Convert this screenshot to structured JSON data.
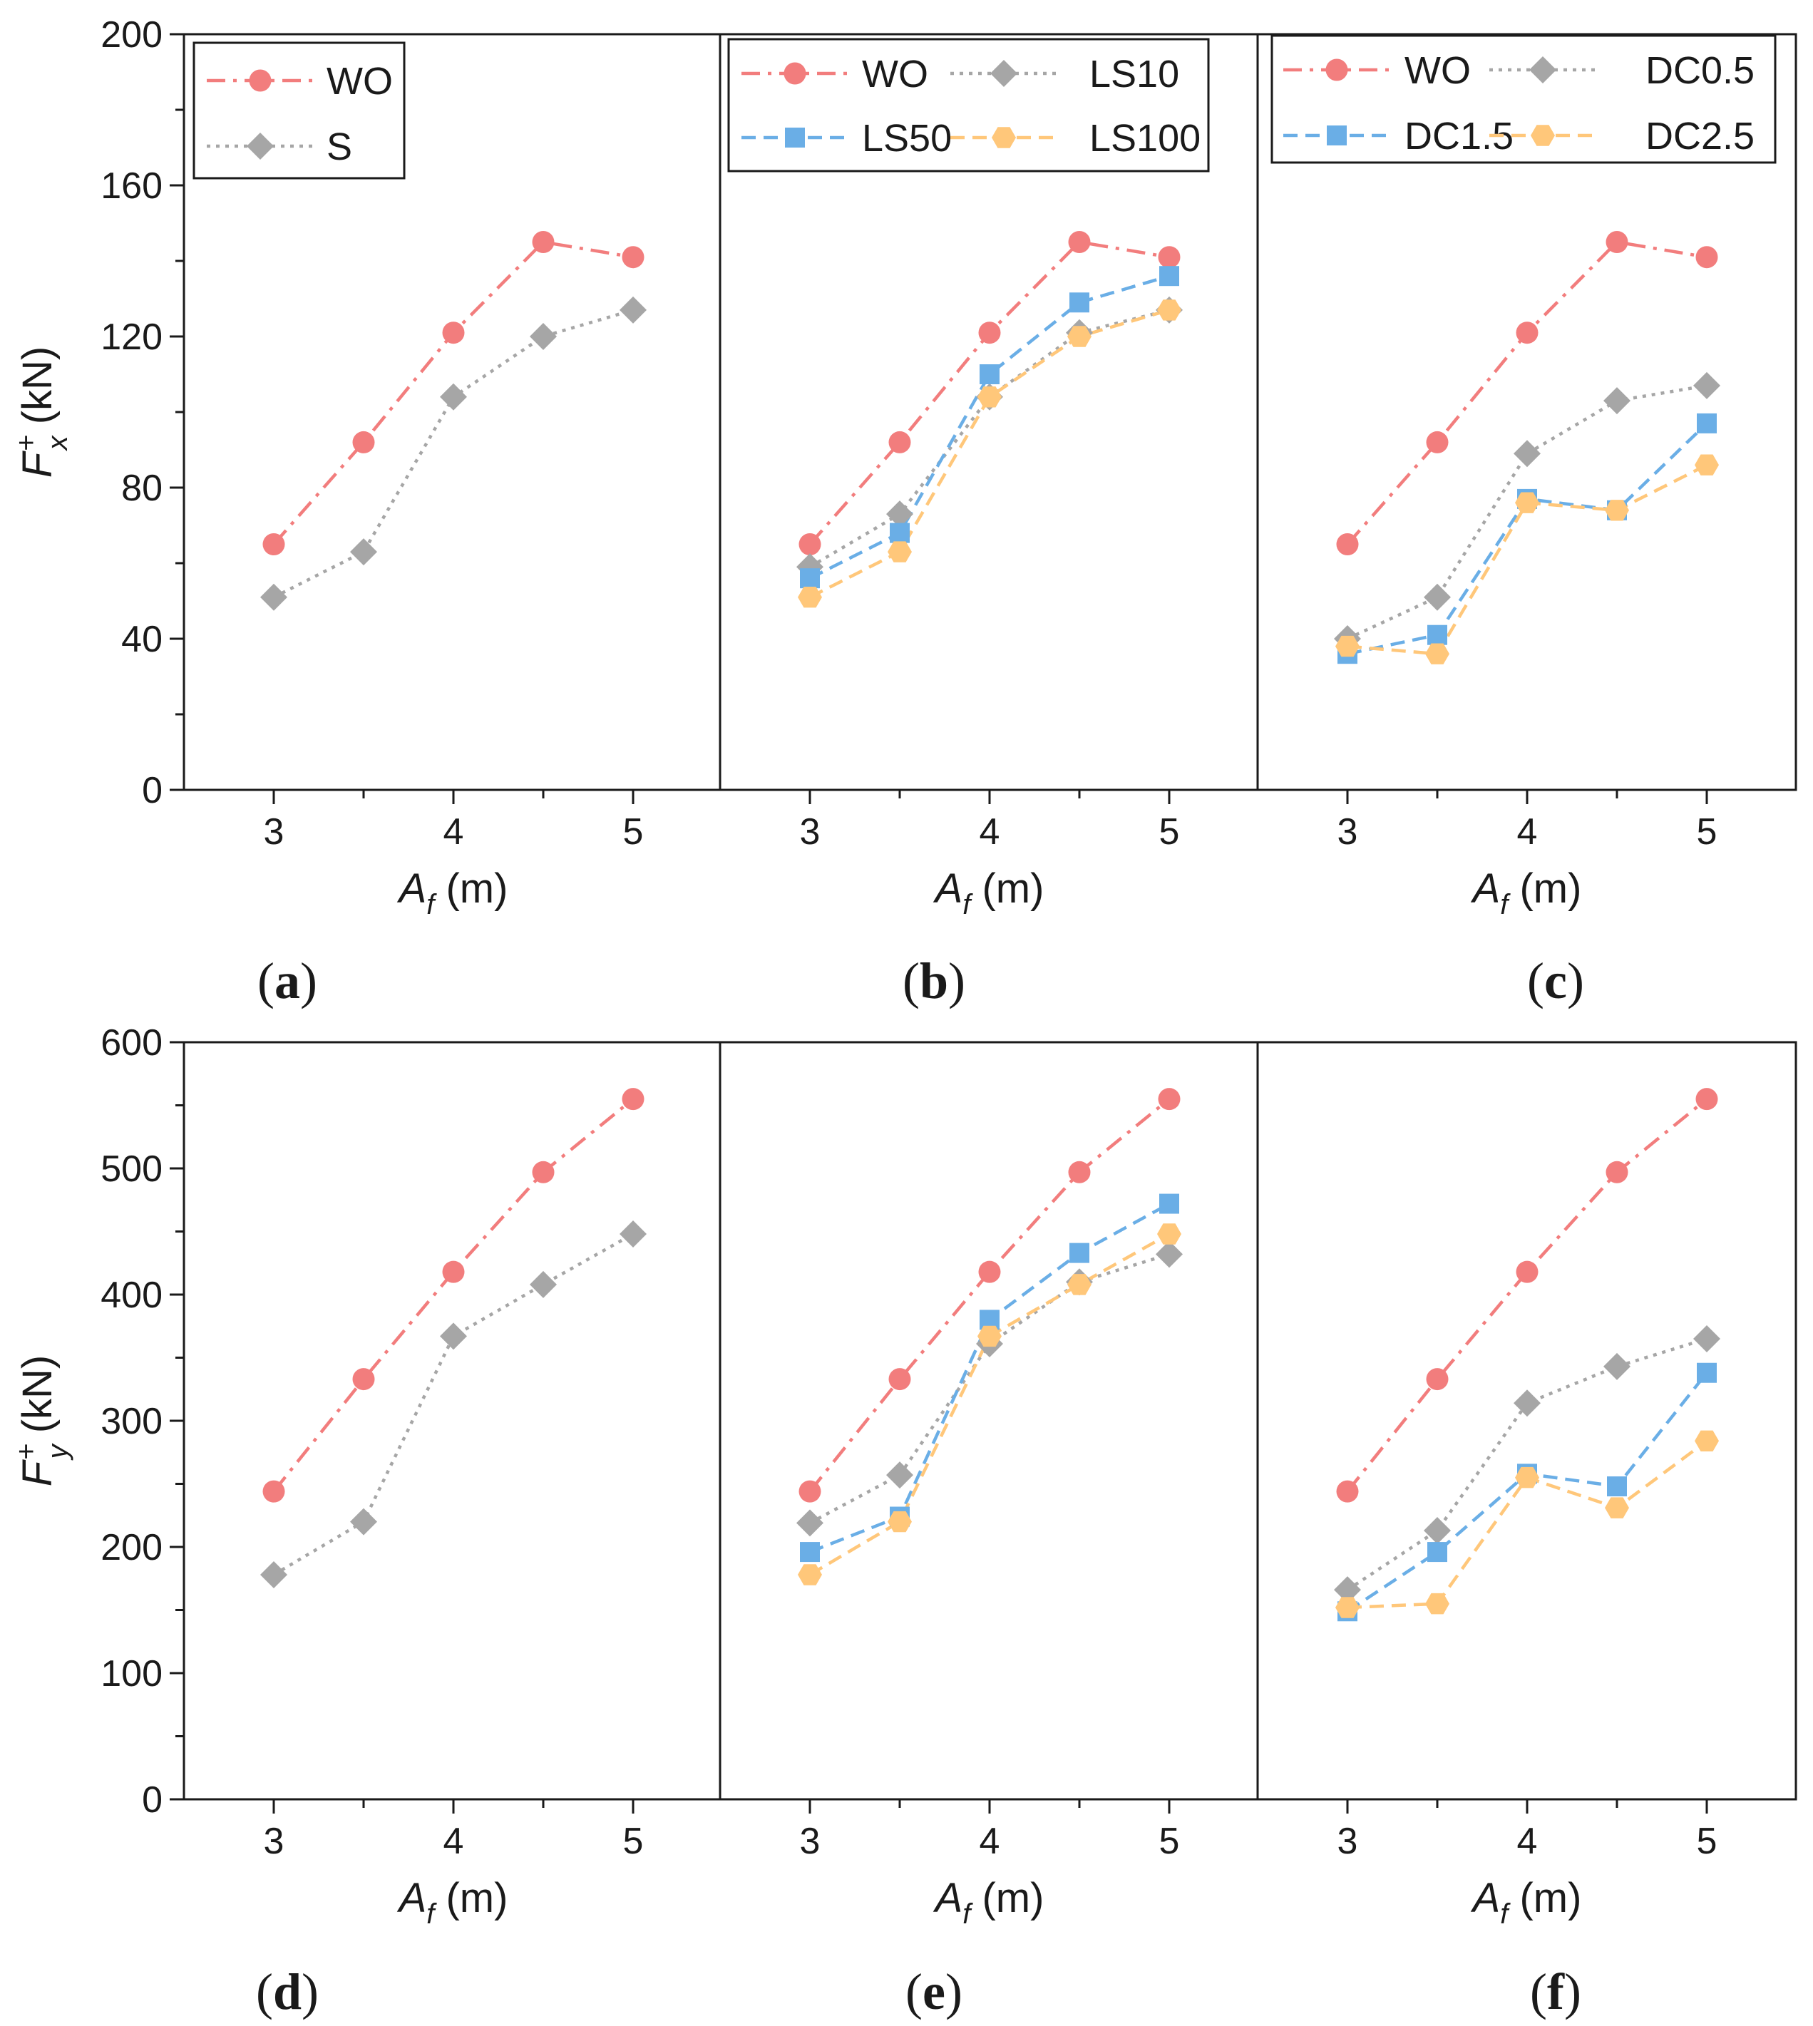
{
  "figure": {
    "colors": {
      "WO": "#f27d7d",
      "gray": "#a6a6a6",
      "blue": "#6aaee6",
      "orange": "#ffc77a"
    }
  },
  "chart_data": [
    {
      "type": "line",
      "panel": "a",
      "panel_label": "a",
      "xlabel": "A_f (m)",
      "ylabel": "F_x^+ (kN)",
      "x": [
        3,
        3.5,
        4,
        4.5,
        5
      ],
      "xticks": [
        "3",
        "4",
        "5"
      ],
      "ylim": [
        0,
        200
      ],
      "yticks": [
        "0",
        "40",
        "80",
        "120",
        "160",
        "200"
      ],
      "grid": false,
      "legend_placement": "top-left",
      "series": [
        {
          "name": "WO",
          "values": [
            65,
            92,
            121,
            145,
            141
          ],
          "marker": "circle",
          "color": "#f27d7d",
          "dash": "dashdot"
        },
        {
          "name": "S",
          "values": [
            51,
            63,
            104,
            120,
            127
          ],
          "marker": "diamond",
          "color": "#a6a6a6",
          "dash": "dot"
        }
      ]
    },
    {
      "type": "line",
      "panel": "b",
      "panel_label": "b",
      "xlabel": "A_f (m)",
      "ylabel": "",
      "x": [
        3,
        3.5,
        4,
        4.5,
        5
      ],
      "xticks": [
        "3",
        "4",
        "5"
      ],
      "ylim": [
        0,
        200
      ],
      "grid": false,
      "legend_placement": "top",
      "series": [
        {
          "name": "WO",
          "values": [
            65,
            92,
            121,
            145,
            141
          ],
          "marker": "circle",
          "color": "#f27d7d",
          "dash": "dashdot"
        },
        {
          "name": "LS10",
          "values": [
            59,
            73,
            104,
            121,
            127
          ],
          "marker": "diamond",
          "color": "#a6a6a6",
          "dash": "dot"
        },
        {
          "name": "LS50",
          "values": [
            56,
            68,
            110,
            129,
            136
          ],
          "marker": "square",
          "color": "#6aaee6",
          "dash": "dash"
        },
        {
          "name": "LS100",
          "values": [
            51,
            63,
            104,
            120,
            127
          ],
          "marker": "hexagon",
          "color": "#ffc77a",
          "dash": "dash"
        }
      ]
    },
    {
      "type": "line",
      "panel": "c",
      "panel_label": "c",
      "xlabel": "A_f (m)",
      "ylabel": "",
      "x": [
        3,
        3.5,
        4,
        4.5,
        5
      ],
      "xticks": [
        "3",
        "4",
        "5"
      ],
      "ylim": [
        0,
        200
      ],
      "grid": false,
      "legend_placement": "top",
      "series": [
        {
          "name": "WO",
          "values": [
            65,
            92,
            121,
            145,
            141
          ],
          "marker": "circle",
          "color": "#f27d7d",
          "dash": "dashdot"
        },
        {
          "name": "DC0.5",
          "values": [
            40,
            51,
            89,
            103,
            107
          ],
          "marker": "diamond",
          "color": "#a6a6a6",
          "dash": "dot"
        },
        {
          "name": "DC1.5",
          "values": [
            36,
            41,
            77,
            74,
            97
          ],
          "marker": "square",
          "color": "#6aaee6",
          "dash": "dash"
        },
        {
          "name": "DC2.5",
          "values": [
            38,
            36,
            76,
            74,
            86
          ],
          "marker": "hexagon",
          "color": "#ffc77a",
          "dash": "dash"
        }
      ]
    },
    {
      "type": "line",
      "panel": "d",
      "panel_label": "d",
      "xlabel": "A_f (m)",
      "ylabel": "F_y^+ (kN)",
      "x": [
        3,
        3.5,
        4,
        4.5,
        5
      ],
      "xticks": [
        "3",
        "4",
        "5"
      ],
      "ylim": [
        0,
        600
      ],
      "yticks": [
        "0",
        "100",
        "200",
        "300",
        "400",
        "500",
        "600"
      ],
      "grid": false,
      "series": [
        {
          "name": "WO",
          "values": [
            244,
            333,
            418,
            497,
            555
          ],
          "marker": "circle",
          "color": "#f27d7d",
          "dash": "dashdot"
        },
        {
          "name": "S",
          "values": [
            178,
            220,
            367,
            408,
            448
          ],
          "marker": "diamond",
          "color": "#a6a6a6",
          "dash": "dot"
        }
      ]
    },
    {
      "type": "line",
      "panel": "e",
      "panel_label": "e",
      "xlabel": "A_f (m)",
      "ylabel": "",
      "x": [
        3,
        3.5,
        4,
        4.5,
        5
      ],
      "xticks": [
        "3",
        "4",
        "5"
      ],
      "ylim": [
        0,
        600
      ],
      "grid": false,
      "series": [
        {
          "name": "WO",
          "values": [
            244,
            333,
            418,
            497,
            555
          ],
          "marker": "circle",
          "color": "#f27d7d",
          "dash": "dashdot"
        },
        {
          "name": "LS10",
          "values": [
            219,
            257,
            361,
            410,
            432
          ],
          "marker": "diamond",
          "color": "#a6a6a6",
          "dash": "dot"
        },
        {
          "name": "LS50",
          "values": [
            196,
            224,
            380,
            433,
            472
          ],
          "marker": "square",
          "color": "#6aaee6",
          "dash": "dash"
        },
        {
          "name": "LS100",
          "values": [
            178,
            220,
            367,
            408,
            448
          ],
          "marker": "hexagon",
          "color": "#ffc77a",
          "dash": "dash"
        }
      ]
    },
    {
      "type": "line",
      "panel": "f",
      "panel_label": "f",
      "xlabel": "A_f (m)",
      "ylabel": "",
      "x": [
        3,
        3.5,
        4,
        4.5,
        5
      ],
      "xticks": [
        "3",
        "4",
        "5"
      ],
      "ylim": [
        0,
        600
      ],
      "grid": false,
      "series": [
        {
          "name": "WO",
          "values": [
            244,
            333,
            418,
            497,
            555
          ],
          "marker": "circle",
          "color": "#f27d7d",
          "dash": "dashdot"
        },
        {
          "name": "DC0.5",
          "values": [
            166,
            213,
            314,
            343,
            365
          ],
          "marker": "diamond",
          "color": "#a6a6a6",
          "dash": "dot"
        },
        {
          "name": "DC1.5",
          "values": [
            149,
            196,
            258,
            248,
            338
          ],
          "marker": "square",
          "color": "#6aaee6",
          "dash": "dash"
        },
        {
          "name": "DC2.5",
          "values": [
            152,
            155,
            255,
            231,
            284
          ],
          "marker": "hexagon",
          "color": "#ffc77a",
          "dash": "dash"
        }
      ]
    }
  ]
}
